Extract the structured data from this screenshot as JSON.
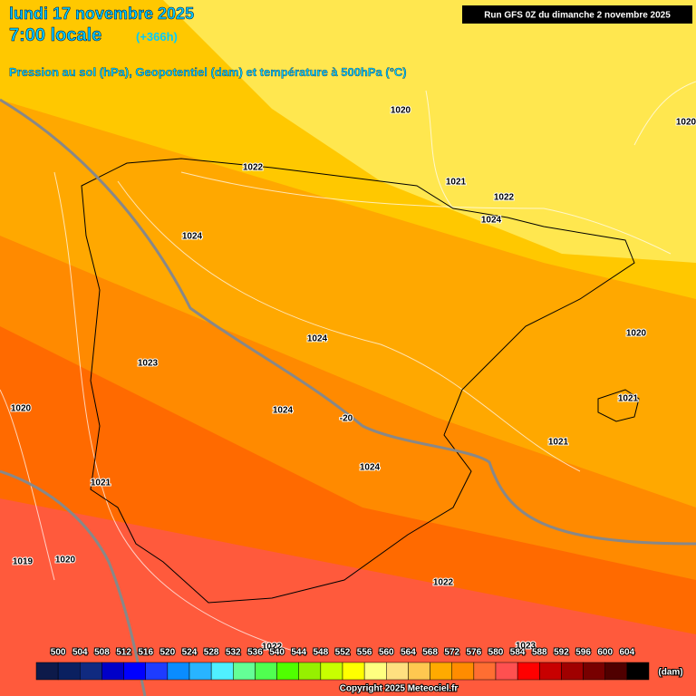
{
  "header": {
    "title": "lundi 17 novembre 2025",
    "time": "7:00 locale",
    "lead": "(+366h)",
    "subtitle": "Pression au sol (hPa), Geopotentiel (dam) et température à 500hPa (°C)",
    "run": "Run GFS 0Z du dimanche 2 novembre 2025"
  },
  "isobar_labels": [
    "1020",
    "1020",
    "1022",
    "1021",
    "1022",
    "1024",
    "1024",
    "1020",
    "1024",
    "1023",
    "1021",
    "1020",
    "1024",
    "-20",
    "1021",
    "1024",
    "1021",
    "1019",
    "1020",
    "1022",
    "1023",
    "1022"
  ],
  "colorbar": {
    "labels": [
      "500",
      "504",
      "508",
      "512",
      "516",
      "520",
      "524",
      "528",
      "532",
      "536",
      "540",
      "544",
      "548",
      "552",
      "556",
      "560",
      "564",
      "568",
      "572",
      "576",
      "580",
      "584",
      "588",
      "592",
      "596",
      "600",
      "604"
    ],
    "colors": [
      "#0d1a4a",
      "#0a2060",
      "#102a80",
      "#0000c8",
      "#0000ff",
      "#1e3cff",
      "#0a8cff",
      "#28b4ff",
      "#50f0ff",
      "#64ff96",
      "#50ff50",
      "#50ff00",
      "#96f000",
      "#c8ff00",
      "#ffff00",
      "#ffff80",
      "#ffe080",
      "#ffc850",
      "#ffaa00",
      "#ff8c00",
      "#ff6e32",
      "#ff5050",
      "#ff0000",
      "#c80000",
      "#a00000",
      "#780000",
      "#500000",
      "#000000"
    ],
    "unit": "(dam)"
  },
  "footer": {
    "copyright": "Copyright 2025 Meteociel.fr"
  }
}
